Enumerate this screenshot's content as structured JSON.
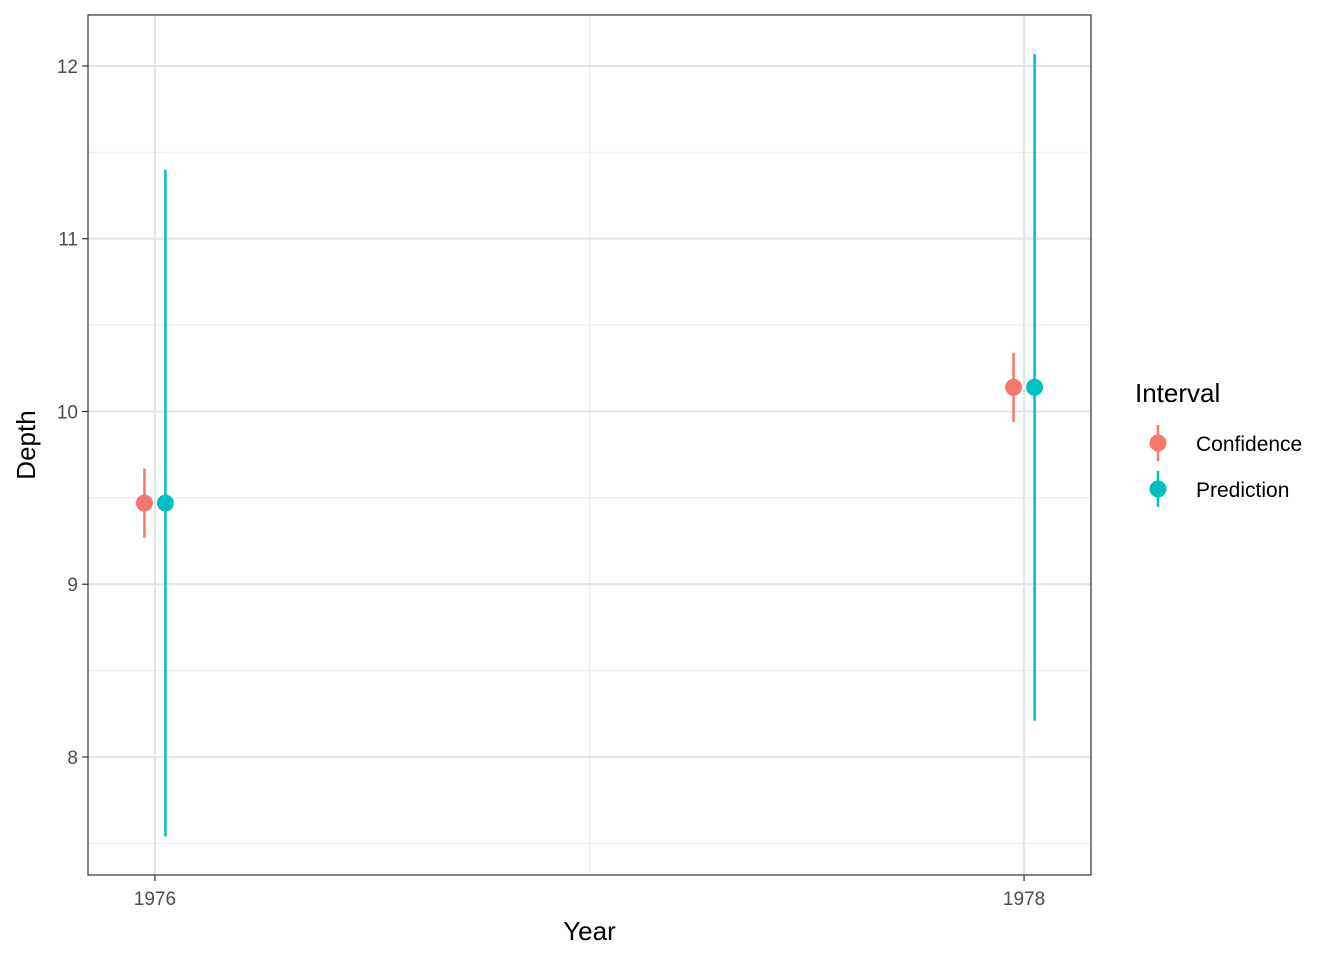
{
  "chart_data": {
    "type": "scatter",
    "subtype": "pointrange",
    "title": "",
    "xlabel": "Year",
    "ylabel": "Depth",
    "xlim": [
      1975.846,
      1978.154
    ],
    "ylim": [
      7.317,
      12.295
    ],
    "x_ticks": [
      1976,
      1978
    ],
    "x_tick_labels": [
      "1976",
      "1978"
    ],
    "y_ticks": [
      8,
      9,
      10,
      11,
      12
    ],
    "y_tick_labels": [
      "8",
      "9",
      "10",
      "11",
      "12"
    ],
    "grid": true,
    "legend": {
      "title": "Interval",
      "placement": "right"
    },
    "series": [
      {
        "name": "Confidence",
        "color": "#F8766D",
        "points": [
          {
            "x": 1976,
            "y": 9.47,
            "lower": 9.27,
            "upper": 9.67
          },
          {
            "x": 1978,
            "y": 10.14,
            "lower": 9.94,
            "upper": 10.34
          }
        ]
      },
      {
        "name": "Prediction",
        "color": "#00BFC4",
        "points": [
          {
            "x": 1976,
            "y": 9.47,
            "lower": 7.54,
            "upper": 11.4
          },
          {
            "x": 1978,
            "y": 10.14,
            "lower": 8.21,
            "upper": 12.07
          }
        ]
      }
    ]
  }
}
